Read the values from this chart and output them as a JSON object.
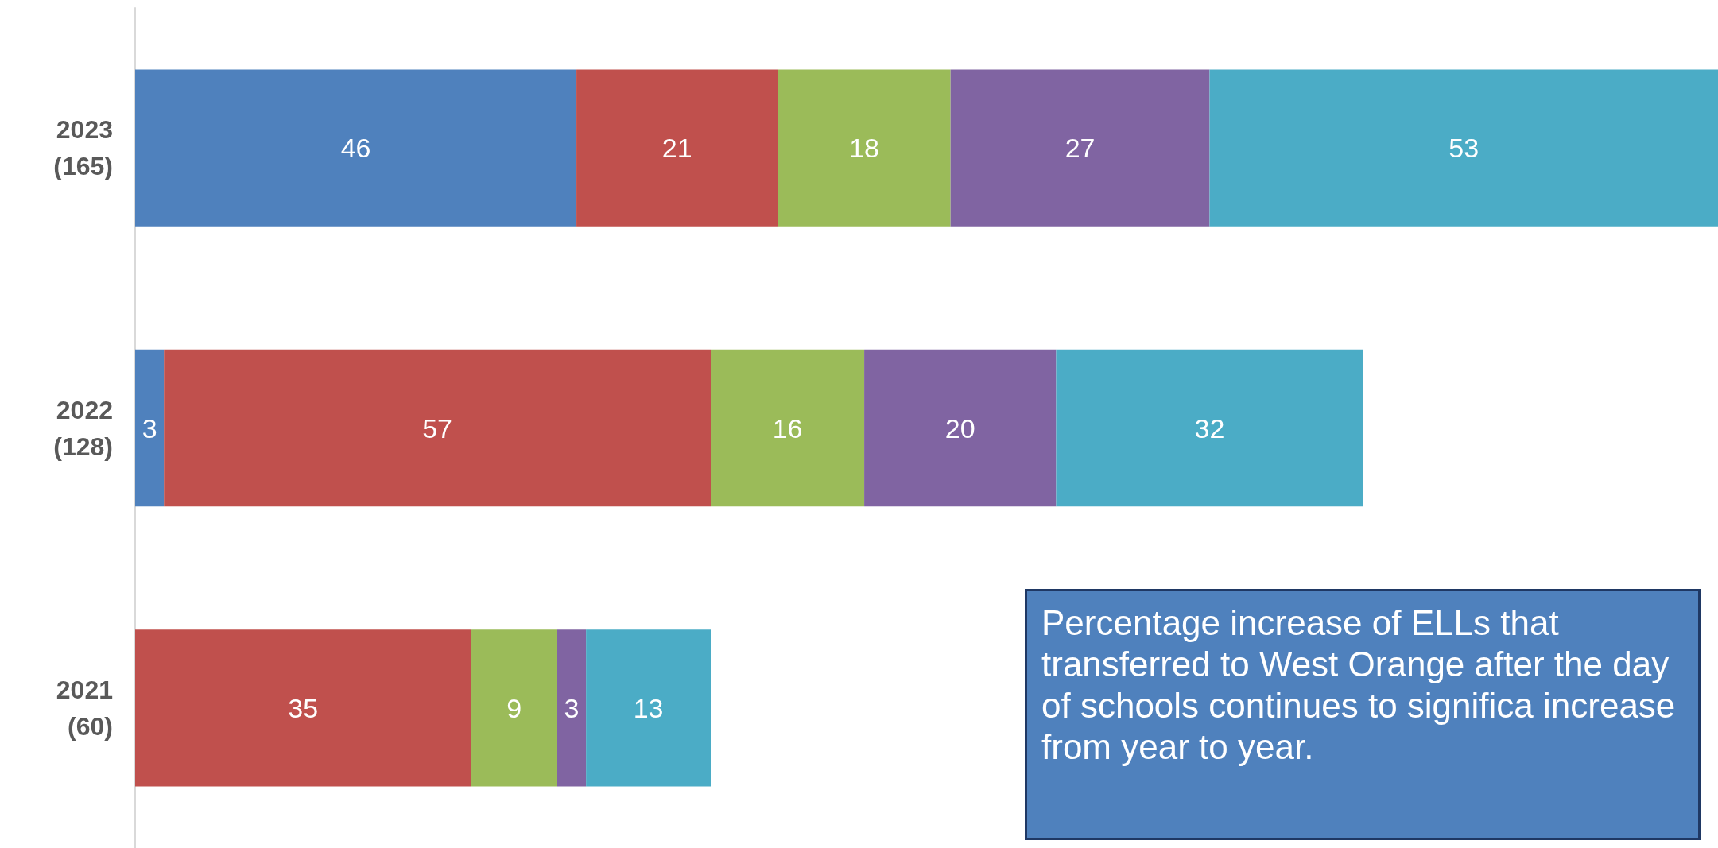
{
  "chart_data": {
    "type": "bar",
    "orientation": "horizontal",
    "stacked": true,
    "categories": [
      "2023\n(165)",
      "2022\n(128)",
      "2021\n(60)"
    ],
    "series": [
      {
        "color": "#4f81bd",
        "values": [
          46,
          3,
          null
        ]
      },
      {
        "color": "#c0504d",
        "values": [
          21,
          57,
          35
        ]
      },
      {
        "color": "#9bbb59",
        "values": [
          18,
          16,
          9
        ]
      },
      {
        "color": "#8064a2",
        "values": [
          27,
          20,
          3
        ]
      },
      {
        "color": "#4bacc6",
        "values": [
          53,
          32,
          13
        ]
      }
    ],
    "xlim": [
      0,
      165
    ],
    "tick_labels": "y",
    "grid": false,
    "data_labels": true,
    "annotations": [
      "Percentage increase of ELLs that transferred to West Orange after the day of schools continues to significa increase from year to year."
    ]
  }
}
